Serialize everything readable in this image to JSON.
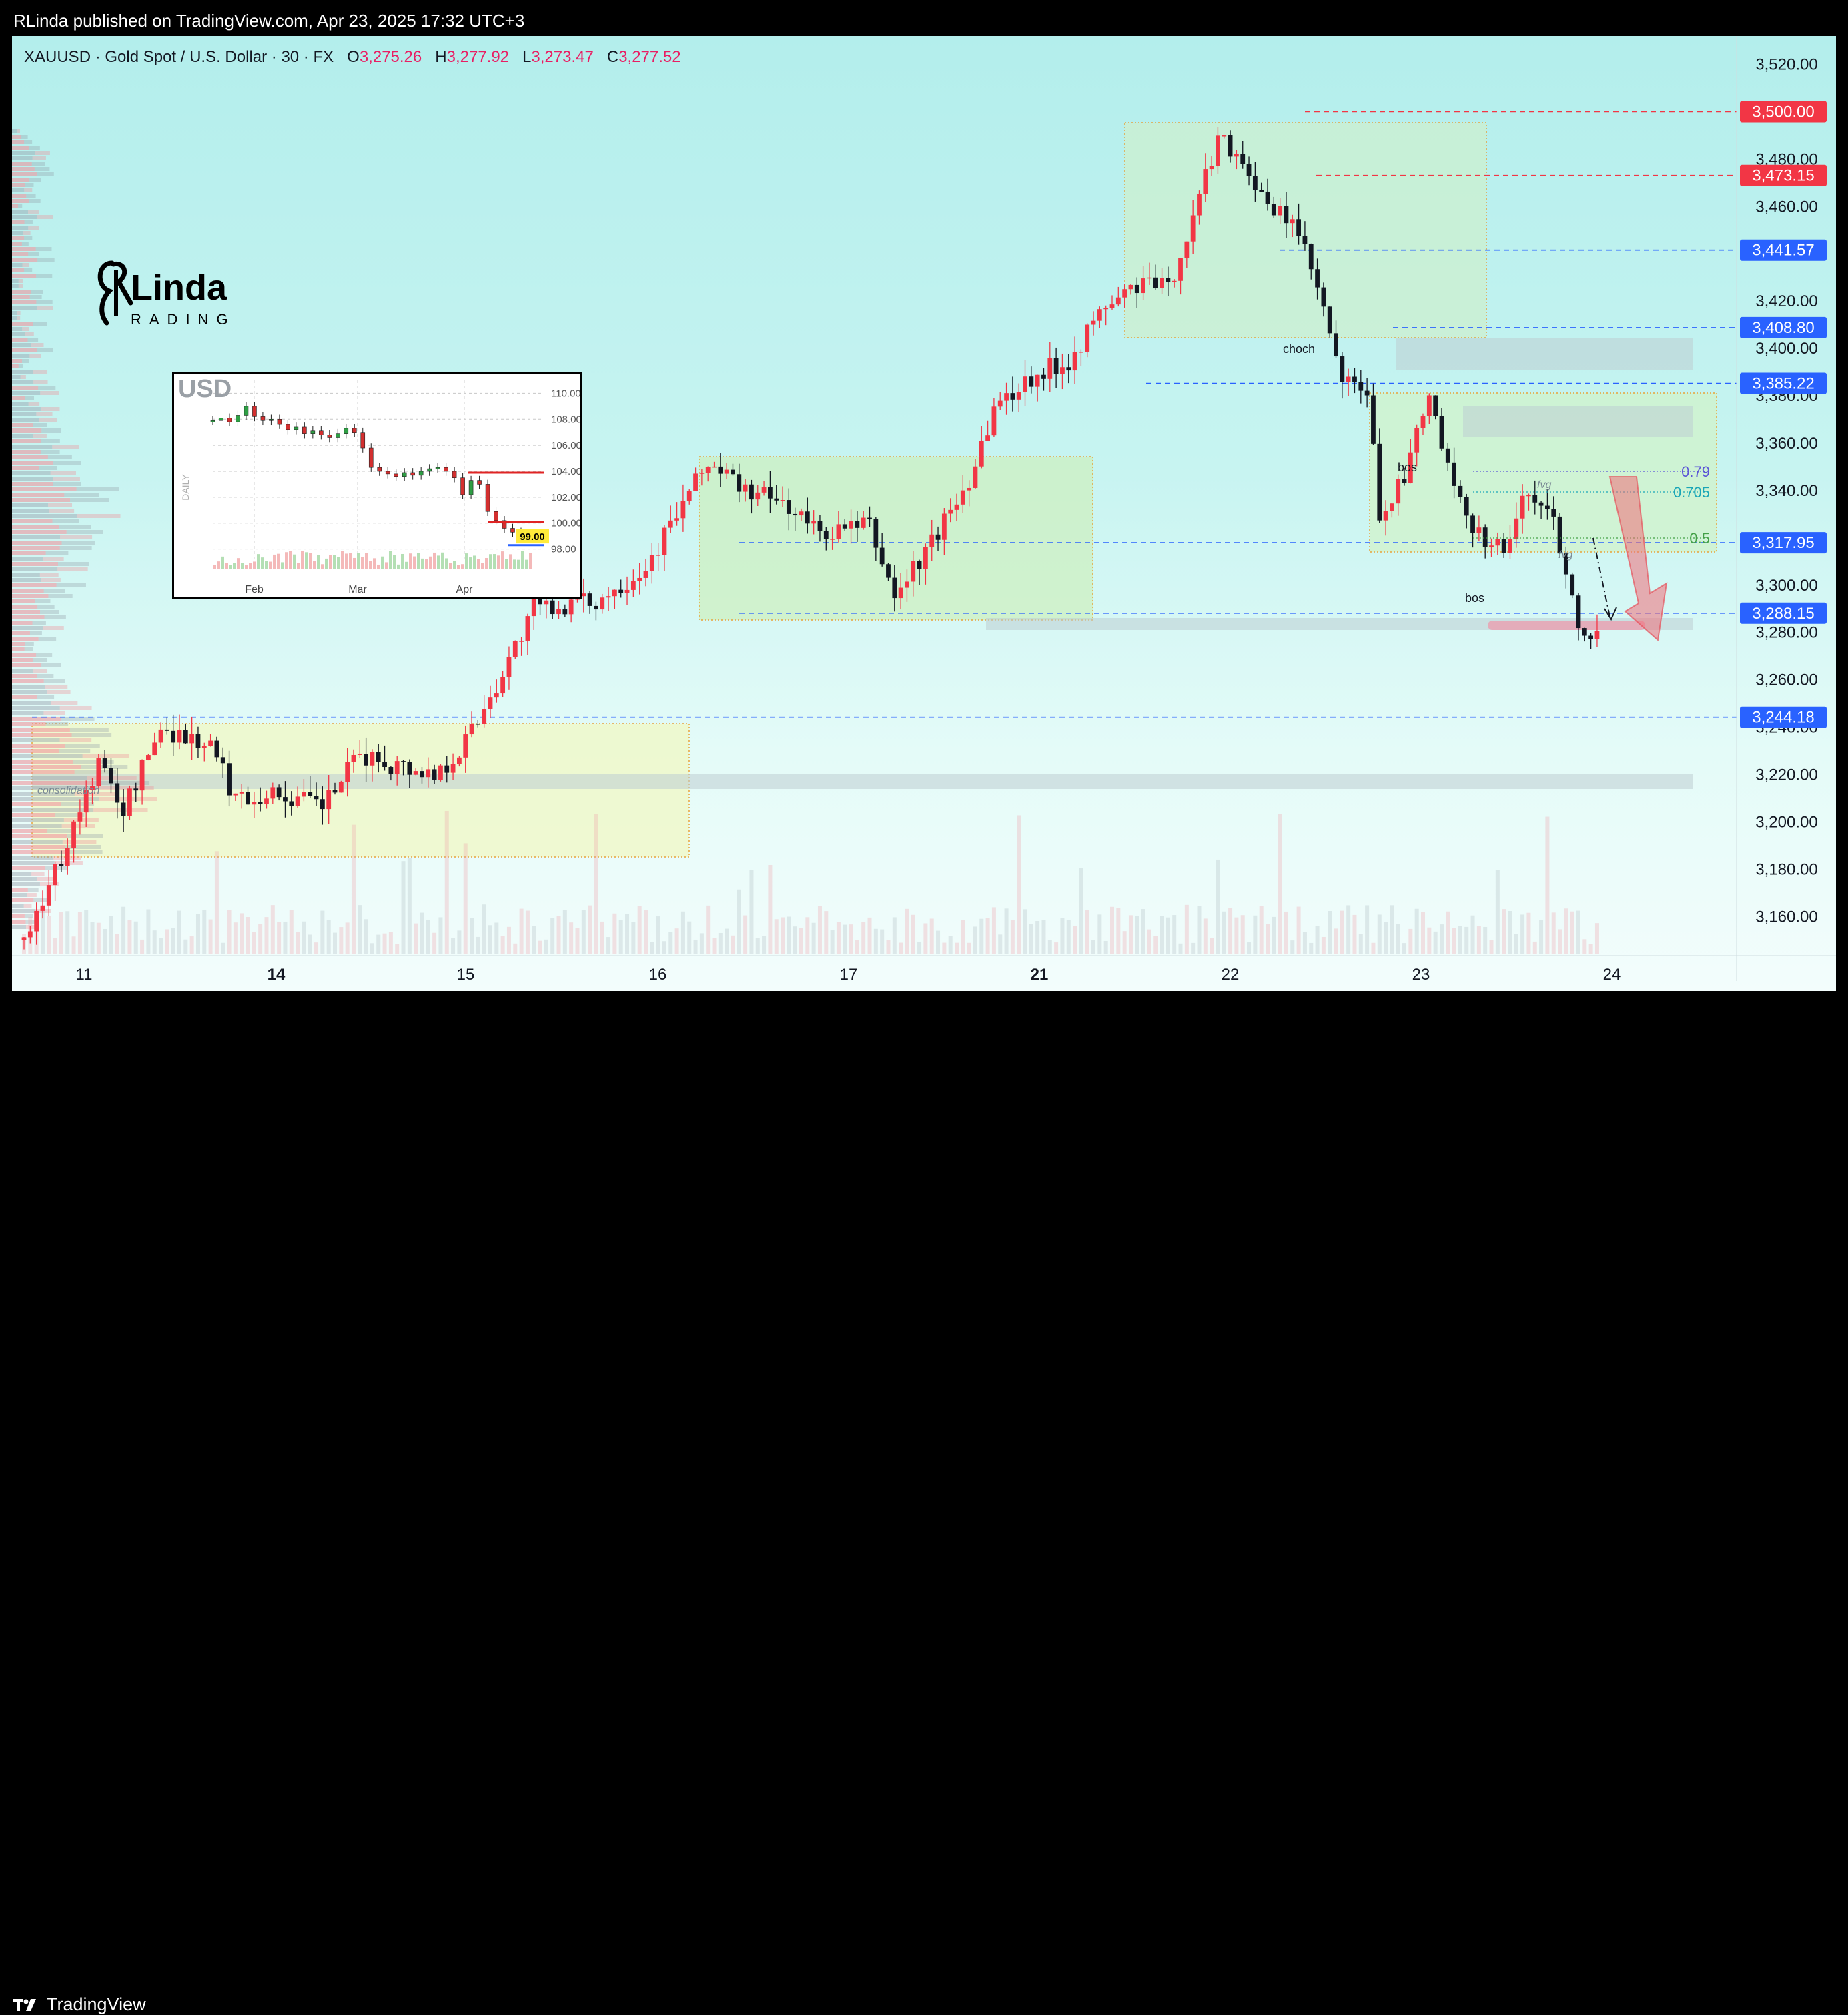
{
  "header": {
    "publish_text": "RLinda published on TradingView.com, Apr 23, 2025 17:32 UTC+3"
  },
  "legend": {
    "symbol": "XAUUSD · Gold Spot / U.S. Dollar · 30 · FX",
    "open_label": "O",
    "open": "3,275.26",
    "high_label": "H",
    "high": "3,277.92",
    "low_label": "L",
    "low": "3,273.47",
    "close_label": "C",
    "close": "3,277.52"
  },
  "brand": {
    "name": "RLinda",
    "sub": "TRADING"
  },
  "footer": {
    "logo_text": "TradingView"
  },
  "colors": {
    "up": "#f23645",
    "down": "#131722",
    "accent_blue": "#2962ff",
    "accent_red": "#f23645",
    "zone_green": "#c8f0c8",
    "zone_orange": "#f0a030"
  },
  "chart_data": [
    {
      "type": "candlestick",
      "title": "XAUUSD · Gold Spot / U.S. Dollar · 30 · FX",
      "x_ticks": [
        "11",
        "14",
        "15",
        "16",
        "17",
        "21",
        "22",
        "23",
        "24"
      ],
      "bold_x_ticks": [
        "14",
        "21"
      ],
      "y_ticks": [
        "3,520.00",
        "3,480.00",
        "3,460.00",
        "3,420.00",
        "3,400.00",
        "3,380.00",
        "3,360.00",
        "3,340.00",
        "3,300.00",
        "3,280.00",
        "3,260.00",
        "3,240.00",
        "3,220.00",
        "3,200.00",
        "3,180.00",
        "3,160.00"
      ],
      "ylim": [
        3144,
        3532
      ],
      "price_path": [
        [
          0,
          3150
        ],
        [
          6,
          3185
        ],
        [
          12,
          3225
        ],
        [
          16,
          3205
        ],
        [
          22,
          3240
        ],
        [
          30,
          3232
        ],
        [
          34,
          3210
        ],
        [
          40,
          3212
        ],
        [
          48,
          3207
        ],
        [
          54,
          3228
        ],
        [
          60,
          3224
        ],
        [
          66,
          3220
        ],
        [
          70,
          3230
        ],
        [
          76,
          3258
        ],
        [
          82,
          3290
        ],
        [
          92,
          3293
        ],
        [
          100,
          3308
        ],
        [
          110,
          3352
        ],
        [
          116,
          3340
        ],
        [
          122,
          3335
        ],
        [
          128,
          3322
        ],
        [
          136,
          3325
        ],
        [
          140,
          3295
        ],
        [
          146,
          3318
        ],
        [
          152,
          3345
        ],
        [
          156,
          3375
        ],
        [
          162,
          3388
        ],
        [
          168,
          3395
        ],
        [
          174,
          3418
        ],
        [
          180,
          3428
        ],
        [
          184,
          3425
        ],
        [
          188,
          3455
        ],
        [
          192,
          3490
        ],
        [
          196,
          3480
        ],
        [
          200,
          3458
        ],
        [
          204,
          3455
        ],
        [
          208,
          3425
        ],
        [
          212,
          3385
        ],
        [
          216,
          3382
        ],
        [
          218,
          3330
        ],
        [
          222,
          3345
        ],
        [
          226,
          3380
        ],
        [
          230,
          3338
        ],
        [
          234,
          3322
        ],
        [
          238,
          3315
        ],
        [
          242,
          3340
        ],
        [
          246,
          3328
        ],
        [
          250,
          3285
        ],
        [
          253,
          3278
        ]
      ],
      "price_path_x_units": "30-minute bars (approx.)",
      "horizontal_levels": [
        {
          "label": "3,500.00",
          "value": 3500.0,
          "color": "#f23645"
        },
        {
          "label": "3,473.15",
          "value": 3473.15,
          "color": "#f23645"
        },
        {
          "label": "3,441.57",
          "value": 3441.57,
          "color": "#2962ff"
        },
        {
          "label": "3,408.80",
          "value": 3408.8,
          "color": "#2962ff"
        },
        {
          "label": "3,385.22",
          "value": 3385.22,
          "color": "#2962ff"
        },
        {
          "label": "3,317.95",
          "value": 3317.95,
          "color": "#2962ff"
        },
        {
          "label": "3,288.15",
          "value": 3288.15,
          "color": "#2962ff"
        },
        {
          "label": "3,244.18",
          "value": 3244.18,
          "color": "#2962ff"
        }
      ],
      "fib_levels": [
        {
          "label": "0.79",
          "color": "#5b55d6"
        },
        {
          "label": "0.705",
          "color": "#1aa6b7"
        },
        {
          "label": "0.5",
          "color": "#43a047"
        }
      ],
      "annotations": [
        "choch",
        "bos",
        "bos",
        "fvg",
        "fvg",
        "consolidation"
      ],
      "zones": [
        "consolidation",
        "range 16-21",
        "top zone 21-22",
        "breakdown zone 23"
      ],
      "grid": false
    },
    {
      "type": "line",
      "title": "USD",
      "y_label": "DAILY",
      "x_ticks": [
        "Feb",
        "Mar",
        "Apr"
      ],
      "y_ticks": [
        "110.00",
        "108.00",
        "106.00",
        "104.00",
        "102.00",
        "100.00",
        "98.00"
      ],
      "last_price": "99.00",
      "ylim": [
        97,
        111
      ],
      "values": [
        107.9,
        108.1,
        107.8,
        108.3,
        109.0,
        108.2,
        107.9,
        108.0,
        107.6,
        107.2,
        107.4,
        106.9,
        107.1,
        106.8,
        106.6,
        106.9,
        107.3,
        107.0,
        105.8,
        104.3,
        104.0,
        103.8,
        103.6,
        103.9,
        103.7,
        104.0,
        104.2,
        104.3,
        104.0,
        103.5,
        102.2,
        103.3,
        103.0,
        100.9,
        100.2,
        99.6,
        99.3,
        99.0
      ]
    }
  ]
}
